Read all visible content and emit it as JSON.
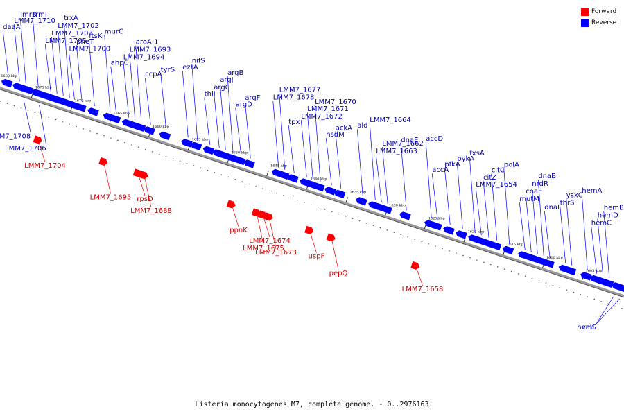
{
  "caption": "Listeria monocytogenes M7, complete genome. - 0..2976163",
  "legend": [
    {
      "label": "Forward",
      "color": "#ff0000"
    },
    {
      "label": "Reverse",
      "color": "#0000ff"
    }
  ],
  "colors": {
    "forward": "#ff0000",
    "reverse": "#0000ff",
    "forward_label": "#cc0000",
    "reverse_label": "#0000aa",
    "axis": "#888888"
  },
  "ticks": [
    {
      "label": "1680 kbp",
      "t": 0.0
    },
    {
      "label": "1675 kbp",
      "t": 0.055
    },
    {
      "label": "1670 kbp",
      "t": 0.118
    },
    {
      "label": "1665 kbp",
      "t": 0.18
    },
    {
      "label": "1660 kbp",
      "t": 0.243
    },
    {
      "label": "1655 kbp",
      "t": 0.306
    },
    {
      "label": "1650 kbp",
      "t": 0.369
    },
    {
      "label": "1645 kbp",
      "t": 0.432
    },
    {
      "label": "1640 kbp",
      "t": 0.496
    },
    {
      "label": "1635 kbp",
      "t": 0.559
    },
    {
      "label": "1630 kbp",
      "t": 0.622
    },
    {
      "label": "1625 kbp",
      "t": 0.685
    },
    {
      "label": "1620 kbp",
      "t": 0.748
    },
    {
      "label": "1615 kbp",
      "t": 0.811
    },
    {
      "label": "1610 kbp",
      "t": 0.874
    },
    {
      "label": "1605 kbp",
      "t": 0.937
    }
  ],
  "genes": [
    {
      "name": "daaA",
      "strand": "reverse",
      "t": 0.012
    },
    {
      "name": "LMM7_1710",
      "strand": "reverse",
      "t": 0.03
    },
    {
      "name": "lmrB",
      "strand": "reverse",
      "t": 0.04
    },
    {
      "name": "trmI",
      "strand": "reverse",
      "t": 0.06
    },
    {
      "name": "LMM7_1705",
      "strand": "reverse",
      "t": 0.08
    },
    {
      "name": "LMM7_1703",
      "strand": "reverse",
      "t": 0.09
    },
    {
      "name": "LMM7_1702",
      "strand": "reverse",
      "t": 0.1
    },
    {
      "name": "trxA",
      "strand": "reverse",
      "t": 0.11
    },
    {
      "name": "LMM7_1700",
      "strand": "reverse",
      "t": 0.118
    },
    {
      "name": "pheT",
      "strand": "reverse",
      "t": 0.13
    },
    {
      "name": "ftsK",
      "strand": "reverse",
      "t": 0.15
    },
    {
      "name": "murC",
      "strand": "reverse",
      "t": 0.175
    },
    {
      "name": "ahpC",
      "strand": "reverse",
      "t": 0.185
    },
    {
      "name": "LMM7_1694",
      "strand": "reverse",
      "t": 0.205
    },
    {
      "name": "LMM7_1693",
      "strand": "reverse",
      "t": 0.215
    },
    {
      "name": "aroA-1",
      "strand": "reverse",
      "t": 0.225
    },
    {
      "name": "ccpA",
      "strand": "reverse",
      "t": 0.24
    },
    {
      "name": "tyrS",
      "strand": "reverse",
      "t": 0.265
    },
    {
      "name": "ezrA",
      "strand": "reverse",
      "t": 0.3
    },
    {
      "name": "nifS",
      "strand": "reverse",
      "t": 0.315
    },
    {
      "name": "thiI",
      "strand": "reverse",
      "t": 0.335
    },
    {
      "name": "argC",
      "strand": "reverse",
      "t": 0.35
    },
    {
      "name": "argJ",
      "strand": "reverse",
      "t": 0.36
    },
    {
      "name": "argB",
      "strand": "reverse",
      "t": 0.372
    },
    {
      "name": "argD",
      "strand": "reverse",
      "t": 0.385
    },
    {
      "name": "argF",
      "strand": "reverse",
      "t": 0.4
    },
    {
      "name": "LMM7_1678",
      "strand": "reverse",
      "t": 0.445
    },
    {
      "name": "LMM7_1677",
      "strand": "reverse",
      "t": 0.455
    },
    {
      "name": "tpx",
      "strand": "reverse",
      "t": 0.47
    },
    {
      "name": "LMM7_1672",
      "strand": "reverse",
      "t": 0.49
    },
    {
      "name": "LMM7_1671",
      "strand": "reverse",
      "t": 0.5
    },
    {
      "name": "LMM7_1670",
      "strand": "reverse",
      "t": 0.512
    },
    {
      "name": "hsdM",
      "strand": "reverse",
      "t": 0.53
    },
    {
      "name": "ackA",
      "strand": "reverse",
      "t": 0.545
    },
    {
      "name": "ald",
      "strand": "reverse",
      "t": 0.58
    },
    {
      "name": "LMM7_1664",
      "strand": "reverse",
      "t": 0.6
    },
    {
      "name": "LMM7_1663",
      "strand": "reverse",
      "t": 0.61
    },
    {
      "name": "LMM7_1662",
      "strand": "reverse",
      "t": 0.62
    },
    {
      "name": "dnaE",
      "strand": "reverse",
      "t": 0.65
    },
    {
      "name": "accD",
      "strand": "reverse",
      "t": 0.69
    },
    {
      "name": "accA",
      "strand": "reverse",
      "t": 0.7
    },
    {
      "name": "pfkA",
      "strand": "reverse",
      "t": 0.72
    },
    {
      "name": "pykA",
      "strand": "reverse",
      "t": 0.74
    },
    {
      "name": "fxsA",
      "strand": "reverse",
      "t": 0.76
    },
    {
      "name": "LMM7_1654",
      "strand": "reverse",
      "t": 0.77
    },
    {
      "name": "citZ",
      "strand": "reverse",
      "t": 0.782
    },
    {
      "name": "citC",
      "strand": "reverse",
      "t": 0.795
    },
    {
      "name": "polA",
      "strand": "reverse",
      "t": 0.815
    },
    {
      "name": "mutM",
      "strand": "reverse",
      "t": 0.84
    },
    {
      "name": "coaE",
      "strand": "reverse",
      "t": 0.85
    },
    {
      "name": "nrdR",
      "strand": "reverse",
      "t": 0.86
    },
    {
      "name": "dnaB",
      "strand": "reverse",
      "t": 0.87
    },
    {
      "name": "dnaI",
      "strand": "reverse",
      "t": 0.88
    },
    {
      "name": "thrS",
      "strand": "reverse",
      "t": 0.905
    },
    {
      "name": "ysxC",
      "strand": "reverse",
      "t": 0.915
    },
    {
      "name": "hemA",
      "strand": "reverse",
      "t": 0.94
    },
    {
      "name": "hemC",
      "strand": "reverse",
      "t": 0.955
    },
    {
      "name": "hemD",
      "strand": "reverse",
      "t": 0.965
    },
    {
      "name": "hemB",
      "strand": "reverse",
      "t": 0.975
    },
    {
      "name": "LMM7_1708",
      "strand": "reverse",
      "t": 0.045
    },
    {
      "name": "LMM7_1706",
      "strand": "reverse",
      "t": 0.07
    },
    {
      "name": "hemL",
      "strand": "reverse",
      "t": 0.99
    },
    {
      "name": "valS",
      "strand": "reverse",
      "t": 1.0
    },
    {
      "name": "LMM7_1704",
      "strand": "forward",
      "t": 0.085
    },
    {
      "name": "LMM7_1695",
      "strand": "forward",
      "t": 0.19
    },
    {
      "name": "rpsD",
      "strand": "forward",
      "t": 0.245
    },
    {
      "name": "LMM7_1688",
      "strand": "forward",
      "t": 0.255
    },
    {
      "name": "ppnK",
      "strand": "forward",
      "t": 0.395
    },
    {
      "name": "LMM7_1675",
      "strand": "forward",
      "t": 0.435
    },
    {
      "name": "LMM7_1674",
      "strand": "forward",
      "t": 0.445
    },
    {
      "name": "LMM7_1673",
      "strand": "forward",
      "t": 0.455
    },
    {
      "name": "uspF",
      "strand": "forward",
      "t": 0.52
    },
    {
      "name": "pepQ",
      "strand": "forward",
      "t": 0.555
    },
    {
      "name": "LMM7_1658",
      "strand": "forward",
      "t": 0.69
    }
  ]
}
